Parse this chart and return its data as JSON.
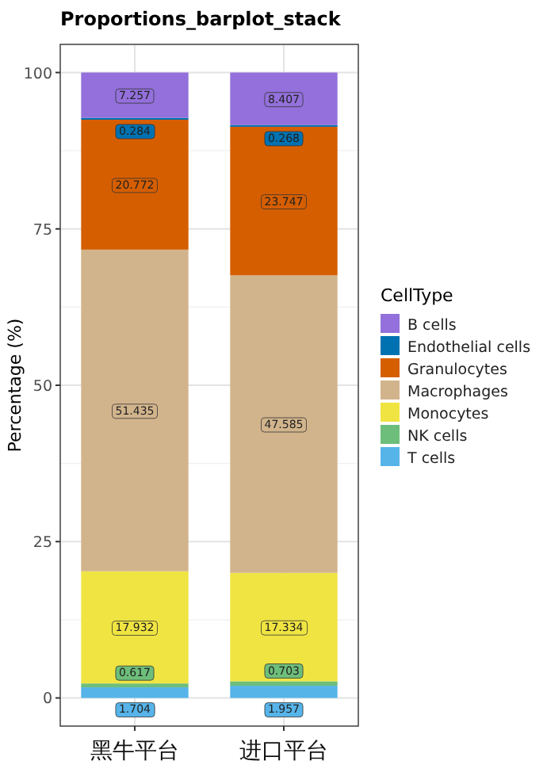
{
  "chart_data": {
    "type": "bar",
    "title": "Proportions_barplot_stack",
    "ylabel": "Percentage (%)",
    "legend_title": "CellType",
    "categories": [
      "黑牛平台",
      "进口平台"
    ],
    "stacked": true,
    "data_labels": true,
    "grid": true,
    "legend": "right",
    "ylim": [
      -4.5,
      104.5
    ],
    "yticks": [
      0,
      25,
      50,
      75,
      100
    ],
    "series": [
      {
        "name": "T cells",
        "color": "#56b4e9",
        "values": [
          1.704,
          1.957
        ]
      },
      {
        "name": "NK cells",
        "color": "#6dbe7a",
        "values": [
          0.617,
          0.703
        ]
      },
      {
        "name": "Monocytes",
        "color": "#f0e442",
        "values": [
          17.932,
          17.334
        ]
      },
      {
        "name": "Macrophages",
        "color": "#d2b48c",
        "values": [
          51.435,
          47.585
        ]
      },
      {
        "name": "Granulocytes",
        "color": "#d55e00",
        "values": [
          20.772,
          23.747
        ]
      },
      {
        "name": "Endothelial cells",
        "color": "#0072b2",
        "values": [
          0.284,
          0.268
        ]
      },
      {
        "name": "B cells",
        "color": "#9370db",
        "values": [
          7.257,
          8.407
        ]
      }
    ]
  }
}
